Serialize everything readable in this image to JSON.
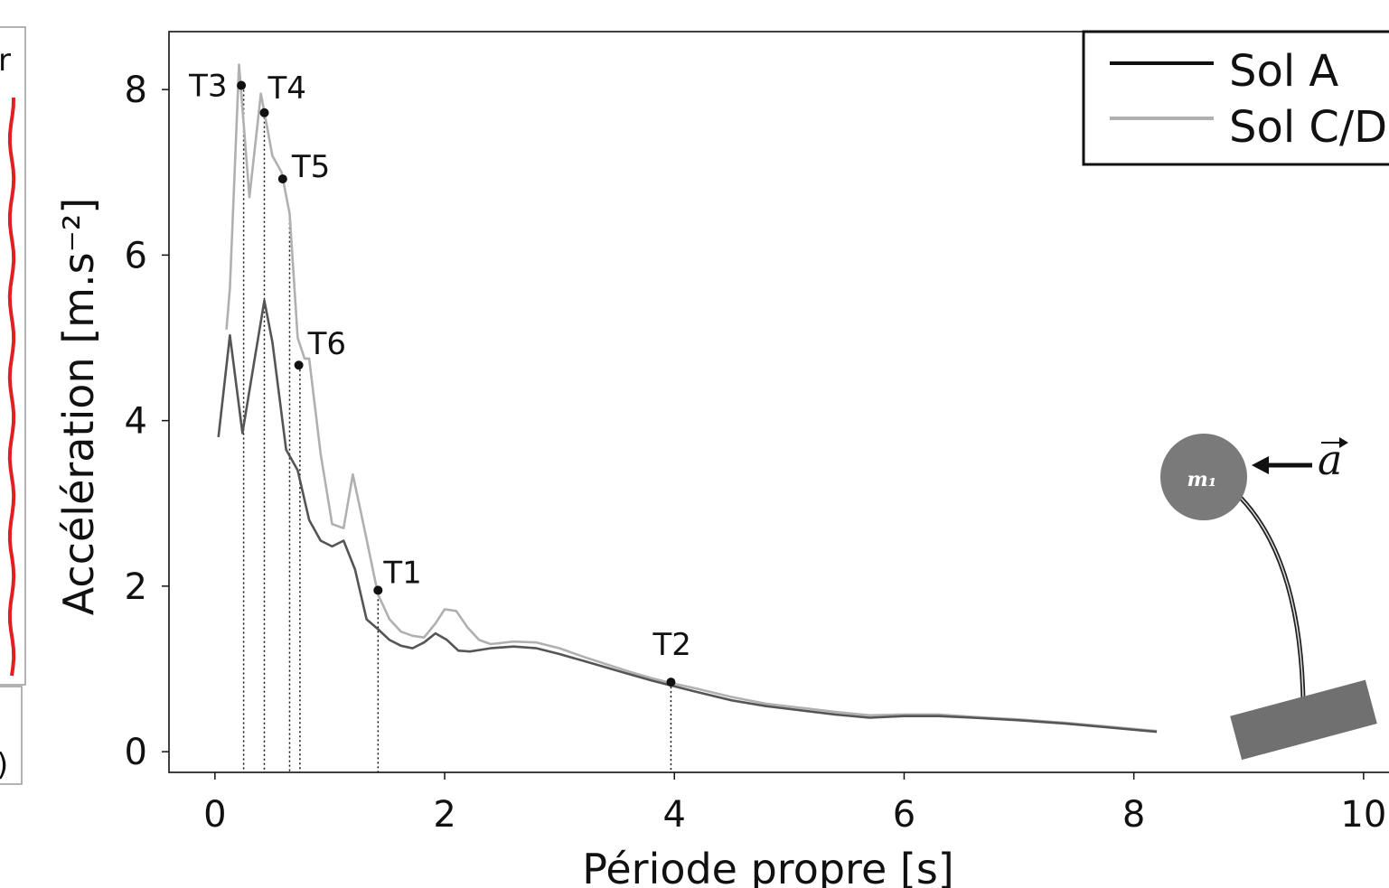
{
  "chart_data": {
    "type": "line",
    "xlabel": "Période propre [s]",
    "ylabel": "Accélération [m.s⁻²]",
    "xlim": [
      -0.4,
      10.3
    ],
    "ylim": [
      -0.25,
      8.7
    ],
    "x_ticks": [
      "0",
      "2",
      "4",
      "6",
      "8",
      "10"
    ],
    "y_ticks": [
      "0",
      "2",
      "4",
      "6",
      "8"
    ],
    "legend_position": "top-right",
    "series": [
      {
        "name": "Sol A",
        "color": "#555555",
        "points": [
          [
            0.03,
            3.8
          ],
          [
            0.13,
            5.03
          ],
          [
            0.24,
            3.85
          ],
          [
            0.34,
            4.7
          ],
          [
            0.43,
            5.45
          ],
          [
            0.5,
            4.95
          ],
          [
            0.62,
            3.65
          ],
          [
            0.72,
            3.4
          ],
          [
            0.82,
            2.8
          ],
          [
            0.92,
            2.55
          ],
          [
            1.02,
            2.48
          ],
          [
            1.12,
            2.55
          ],
          [
            1.22,
            2.2
          ],
          [
            1.32,
            1.6
          ],
          [
            1.42,
            1.48
          ],
          [
            1.52,
            1.35
          ],
          [
            1.62,
            1.28
          ],
          [
            1.72,
            1.25
          ],
          [
            1.82,
            1.32
          ],
          [
            1.92,
            1.43
          ],
          [
            2.02,
            1.35
          ],
          [
            2.12,
            1.22
          ],
          [
            2.22,
            1.21
          ],
          [
            2.4,
            1.25
          ],
          [
            2.6,
            1.27
          ],
          [
            2.8,
            1.25
          ],
          [
            3.0,
            1.18
          ],
          [
            3.2,
            1.1
          ],
          [
            3.4,
            1.02
          ],
          [
            3.6,
            0.94
          ],
          [
            3.8,
            0.86
          ],
          [
            3.97,
            0.8
          ],
          [
            4.2,
            0.72
          ],
          [
            4.5,
            0.62
          ],
          [
            4.8,
            0.55
          ],
          [
            5.1,
            0.5
          ],
          [
            5.4,
            0.45
          ],
          [
            5.7,
            0.41
          ],
          [
            6.0,
            0.43
          ],
          [
            6.3,
            0.43
          ],
          [
            6.6,
            0.41
          ],
          [
            7.0,
            0.38
          ],
          [
            7.4,
            0.34
          ],
          [
            7.8,
            0.29
          ],
          [
            8.2,
            0.24
          ]
        ]
      },
      {
        "name": "Sol C/D",
        "color": "#b0b0b0",
        "points": [
          [
            0.1,
            5.1
          ],
          [
            0.13,
            5.6
          ],
          [
            0.21,
            8.3
          ],
          [
            0.3,
            6.7
          ],
          [
            0.4,
            7.95
          ],
          [
            0.5,
            7.2
          ],
          [
            0.58,
            7.0
          ],
          [
            0.65,
            6.5
          ],
          [
            0.72,
            5.0
          ],
          [
            0.78,
            4.75
          ],
          [
            0.82,
            4.75
          ],
          [
            0.92,
            3.6
          ],
          [
            1.02,
            2.75
          ],
          [
            1.12,
            2.7
          ],
          [
            1.2,
            3.35
          ],
          [
            1.3,
            2.7
          ],
          [
            1.42,
            1.9
          ],
          [
            1.52,
            1.6
          ],
          [
            1.62,
            1.45
          ],
          [
            1.72,
            1.4
          ],
          [
            1.82,
            1.38
          ],
          [
            1.92,
            1.55
          ],
          [
            2.0,
            1.72
          ],
          [
            2.1,
            1.7
          ],
          [
            2.2,
            1.5
          ],
          [
            2.3,
            1.35
          ],
          [
            2.4,
            1.3
          ],
          [
            2.6,
            1.33
          ],
          [
            2.8,
            1.32
          ],
          [
            3.0,
            1.25
          ],
          [
            3.2,
            1.15
          ],
          [
            3.4,
            1.06
          ],
          [
            3.6,
            0.97
          ],
          [
            3.8,
            0.89
          ],
          [
            3.97,
            0.83
          ],
          [
            4.2,
            0.76
          ],
          [
            4.5,
            0.66
          ],
          [
            4.8,
            0.58
          ],
          [
            5.1,
            0.53
          ],
          [
            5.4,
            0.48
          ],
          [
            5.7,
            0.44
          ],
          [
            6.0,
            0.45
          ],
          [
            6.3,
            0.45
          ],
          [
            6.6,
            0.42
          ],
          [
            7.0,
            0.39
          ],
          [
            7.4,
            0.35
          ],
          [
            7.8,
            0.3
          ],
          [
            8.2,
            0.25
          ]
        ]
      }
    ],
    "annotations": [
      {
        "label": "T3",
        "x": 0.23,
        "y": 8.05
      },
      {
        "label": "T4",
        "x": 0.43,
        "y": 7.72
      },
      {
        "label": "T5",
        "x": 0.59,
        "y": 6.92
      },
      {
        "label": "T6",
        "x": 0.73,
        "y": 4.67
      },
      {
        "label": "T1",
        "x": 1.42,
        "y": 1.95
      },
      {
        "label": "T2",
        "x": 3.97,
        "y": 0.84
      }
    ],
    "vertical_lines_x": [
      0.25,
      0.43,
      0.65,
      0.74,
      1.42,
      3.97
    ]
  },
  "inset": {
    "mass_label": "m₁",
    "acceleration_label": "a",
    "mass_color": "#7a7a7a",
    "base_color": "#707070"
  },
  "left_panel": {
    "top_text": "r",
    "bottom_text": ")",
    "line_color": "#e02020"
  }
}
